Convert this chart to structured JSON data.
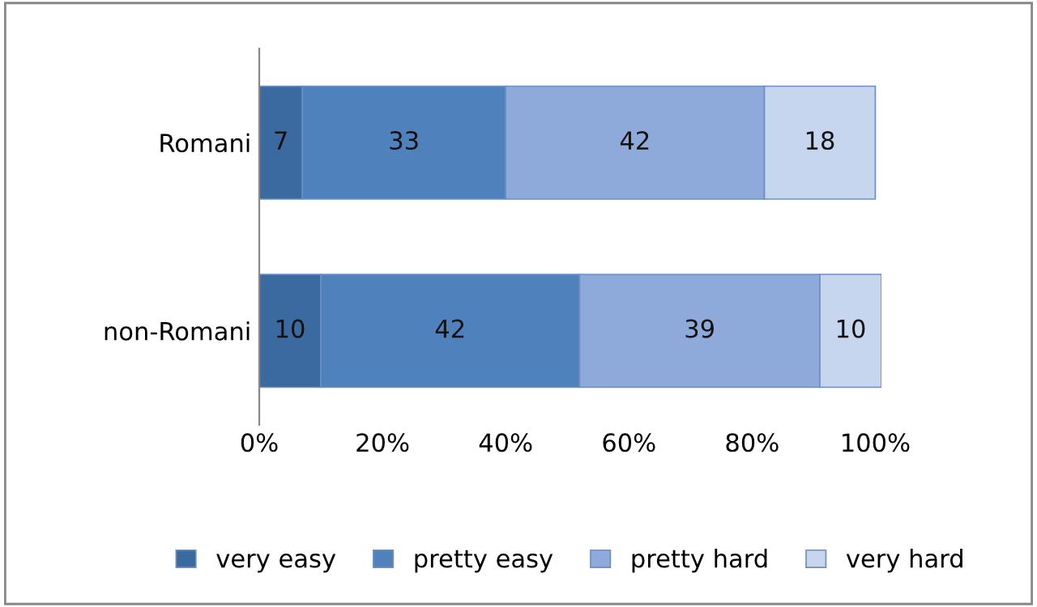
{
  "chart_data": {
    "type": "bar",
    "orientation": "horizontal",
    "stacked": true,
    "categories": [
      "Romani",
      "non-Romani"
    ],
    "series": [
      {
        "name": "very easy",
        "color": "#3b6aa0",
        "values": [
          7,
          10
        ]
      },
      {
        "name": "pretty easy",
        "color": "#4f81bd",
        "values": [
          33,
          42
        ]
      },
      {
        "name": "pretty hard",
        "color": "#8eaadb",
        "values": [
          42,
          39
        ]
      },
      {
        "name": "very hard",
        "color": "#c6d6ee",
        "values": [
          18,
          10
        ]
      }
    ],
    "xlim": [
      0,
      101
    ],
    "xticks": [
      {
        "value": 0,
        "label": "0%"
      },
      {
        "value": 20,
        "label": "20%"
      },
      {
        "value": 40,
        "label": "40%"
      },
      {
        "value": 60,
        "label": "60%"
      },
      {
        "value": 80,
        "label": "80%"
      },
      {
        "value": 100,
        "label": "100%"
      }
    ],
    "data_labels": true,
    "grid": false,
    "legend": "bottom"
  }
}
